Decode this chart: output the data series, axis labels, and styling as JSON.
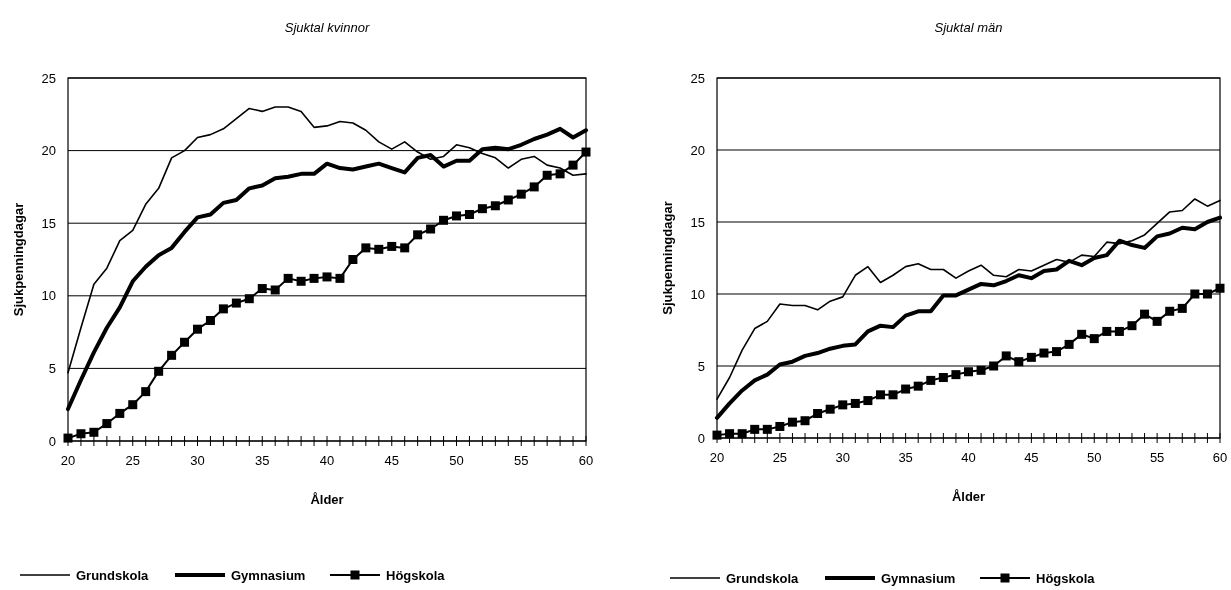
{
  "chart_data": [
    {
      "type": "line",
      "title": "Sjuktal kvinnor",
      "xlabel": "Ålder",
      "ylabel": "Sjukpenningdagar",
      "x": [
        20,
        21,
        22,
        23,
        24,
        25,
        26,
        27,
        28,
        29,
        30,
        31,
        32,
        33,
        34,
        35,
        36,
        37,
        38,
        39,
        40,
        41,
        42,
        43,
        44,
        45,
        46,
        47,
        48,
        49,
        50,
        51,
        52,
        53,
        54,
        55,
        56,
        57,
        58,
        59,
        60
      ],
      "xlim": [
        20,
        60
      ],
      "ylim": [
        0,
        25
      ],
      "yticks": [
        0,
        5,
        10,
        15,
        20,
        25
      ],
      "xticks": [
        20,
        {
          "value": 21,
          "label": null
        },
        {
          "value": 22,
          "label": null
        },
        {
          "value": 23,
          "label": null
        },
        {
          "value": 24,
          "label": null
        },
        25,
        {
          "value": 26,
          "label": null
        },
        {
          "value": 27,
          "label": null
        },
        {
          "value": 28,
          "label": null
        },
        {
          "value": 29,
          "label": null
        },
        30,
        {
          "value": 31,
          "label": null
        },
        {
          "value": 32,
          "label": null
        },
        {
          "value": 33,
          "label": null
        },
        {
          "value": 34,
          "label": null
        },
        35,
        {
          "value": 36,
          "label": null
        },
        {
          "value": 37,
          "label": null
        },
        {
          "value": 38,
          "label": null
        },
        {
          "value": 39,
          "label": null
        },
        40,
        {
          "value": 41,
          "label": null
        },
        {
          "value": 42,
          "label": null
        },
        {
          "value": 43,
          "label": null
        },
        {
          "value": 44,
          "label": null
        },
        45,
        {
          "value": 46,
          "label": null
        },
        {
          "value": 47,
          "label": null
        },
        {
          "value": 48,
          "label": null
        },
        {
          "value": 49,
          "label": null
        },
        50,
        {
          "value": 51,
          "label": null
        },
        {
          "value": 52,
          "label": null
        },
        {
          "value": 53,
          "label": null
        },
        {
          "value": 54,
          "label": null
        },
        55,
        {
          "value": 56,
          "label": null
        },
        {
          "value": 57,
          "label": null
        },
        {
          "value": 58,
          "label": null
        },
        {
          "value": 59,
          "label": null
        },
        60
      ],
      "grid": "y",
      "legend": "bottom",
      "line_style": "solid",
      "series": [
        {
          "name": "Grundskola",
          "color": "#000000",
          "marker": "none",
          "values": [
            4.7,
            7.8,
            10.8,
            11.9,
            13.8,
            14.5,
            16.3,
            17.4,
            19.5,
            20.0,
            20.9,
            21.1,
            21.5,
            22.2,
            22.9,
            22.7,
            23.0,
            23.0,
            22.7,
            21.6,
            21.7,
            22.0,
            21.9,
            21.4,
            20.6,
            20.1,
            20.6,
            19.9,
            19.4,
            19.6,
            20.4,
            20.2,
            19.8,
            19.5,
            18.8,
            19.4,
            19.6,
            19.0,
            18.8,
            18.3,
            18.4
          ]
        },
        {
          "name": "Gymnasium",
          "color": "#000000",
          "marker": "none",
          "values": [
            2.2,
            4.2,
            6.1,
            7.8,
            9.2,
            11.0,
            12.0,
            12.8,
            13.3,
            14.4,
            15.4,
            15.6,
            16.4,
            16.6,
            17.4,
            17.6,
            18.1,
            18.2,
            18.4,
            18.4,
            19.1,
            18.8,
            18.7,
            18.9,
            19.1,
            18.8,
            18.5,
            19.5,
            19.7,
            18.9,
            19.3,
            19.3,
            20.1,
            20.2,
            20.1,
            20.4,
            20.8,
            21.1,
            21.5,
            20.9,
            21.4
          ]
        },
        {
          "name": "Högskola",
          "color": "#000000",
          "marker": "square",
          "values": [
            0.2,
            0.5,
            0.6,
            1.2,
            1.9,
            2.5,
            3.4,
            4.8,
            5.9,
            6.8,
            7.7,
            8.3,
            9.1,
            9.5,
            9.8,
            10.5,
            10.4,
            11.2,
            11.0,
            11.2,
            11.3,
            11.2,
            12.5,
            13.3,
            13.2,
            13.4,
            13.3,
            14.2,
            14.6,
            15.2,
            15.5,
            15.6,
            16.0,
            16.2,
            16.6,
            17.0,
            17.5,
            18.3,
            18.4,
            19.0,
            19.9
          ]
        }
      ]
    },
    {
      "type": "line",
      "title": "Sjuktal män",
      "xlabel": "Ålder",
      "ylabel": "Sjukpenningdagar",
      "x": [
        20,
        21,
        22,
        23,
        24,
        25,
        26,
        27,
        28,
        29,
        30,
        31,
        32,
        33,
        34,
        35,
        36,
        37,
        38,
        39,
        40,
        41,
        42,
        43,
        44,
        45,
        46,
        47,
        48,
        49,
        50,
        51,
        52,
        53,
        54,
        55,
        56,
        57,
        58,
        59,
        60
      ],
      "xlim": [
        20,
        60
      ],
      "ylim": [
        0,
        25
      ],
      "yticks": [
        0,
        5,
        10,
        15,
        20,
        25
      ],
      "xticks": [
        20,
        {
          "value": 21,
          "label": null
        },
        {
          "value": 22,
          "label": null
        },
        {
          "value": 23,
          "label": null
        },
        {
          "value": 24,
          "label": null
        },
        25,
        {
          "value": 26,
          "label": null
        },
        {
          "value": 27,
          "label": null
        },
        {
          "value": 28,
          "label": null
        },
        {
          "value": 29,
          "label": null
        },
        30,
        {
          "value": 31,
          "label": null
        },
        {
          "value": 32,
          "label": null
        },
        {
          "value": 33,
          "label": null
        },
        {
          "value": 34,
          "label": null
        },
        35,
        {
          "value": 36,
          "label": null
        },
        {
          "value": 37,
          "label": null
        },
        {
          "value": 38,
          "label": null
        },
        {
          "value": 39,
          "label": null
        },
        40,
        {
          "value": 41,
          "label": null
        },
        {
          "value": 42,
          "label": null
        },
        {
          "value": 43,
          "label": null
        },
        {
          "value": 44,
          "label": null
        },
        45,
        {
          "value": 46,
          "label": null
        },
        {
          "value": 47,
          "label": null
        },
        {
          "value": 48,
          "label": null
        },
        {
          "value": 49,
          "label": null
        },
        50,
        {
          "value": 51,
          "label": null
        },
        {
          "value": 52,
          "label": null
        },
        {
          "value": 53,
          "label": null
        },
        {
          "value": 54,
          "label": null
        },
        55,
        {
          "value": 56,
          "label": null
        },
        {
          "value": 57,
          "label": null
        },
        {
          "value": 58,
          "label": null
        },
        {
          "value": 59,
          "label": null
        },
        60
      ],
      "grid": "y",
      "legend": "bottom",
      "line_style": "solid",
      "series": [
        {
          "name": "Grundskola",
          "color": "#000000",
          "marker": "none",
          "values": [
            2.7,
            4.2,
            6.1,
            7.6,
            8.1,
            9.3,
            9.2,
            9.2,
            8.9,
            9.5,
            9.8,
            11.3,
            11.9,
            10.8,
            11.3,
            11.9,
            12.1,
            11.7,
            11.7,
            11.1,
            11.6,
            12.0,
            11.3,
            11.2,
            11.7,
            11.6,
            12.0,
            12.4,
            12.2,
            12.7,
            12.6,
            13.6,
            13.5,
            13.7,
            14.1,
            14.9,
            15.7,
            15.8,
            16.6,
            16.1,
            16.5
          ]
        },
        {
          "name": "Gymnasium",
          "color": "#000000",
          "marker": "none",
          "values": [
            1.4,
            2.4,
            3.3,
            4.0,
            4.4,
            5.1,
            5.3,
            5.7,
            5.9,
            6.2,
            6.4,
            6.5,
            7.4,
            7.8,
            7.7,
            8.5,
            8.8,
            8.8,
            9.9,
            9.9,
            10.3,
            10.7,
            10.6,
            10.9,
            11.3,
            11.1,
            11.6,
            11.7,
            12.3,
            12.0,
            12.5,
            12.7,
            13.7,
            13.4,
            13.2,
            14.0,
            14.2,
            14.6,
            14.5,
            15.0,
            15.3
          ]
        },
        {
          "name": "Högskola",
          "color": "#000000",
          "marker": "square",
          "values": [
            0.2,
            0.3,
            0.3,
            0.6,
            0.6,
            0.8,
            1.1,
            1.2,
            1.7,
            2.0,
            2.3,
            2.4,
            2.6,
            3.0,
            3.0,
            3.4,
            3.6,
            4.0,
            4.2,
            4.4,
            4.6,
            4.7,
            5.0,
            5.7,
            5.3,
            5.6,
            5.9,
            6.0,
            6.5,
            7.2,
            6.9,
            7.4,
            7.4,
            7.8,
            8.6,
            8.1,
            8.8,
            9.0,
            10.0,
            10.0,
            10.4
          ]
        }
      ]
    }
  ]
}
